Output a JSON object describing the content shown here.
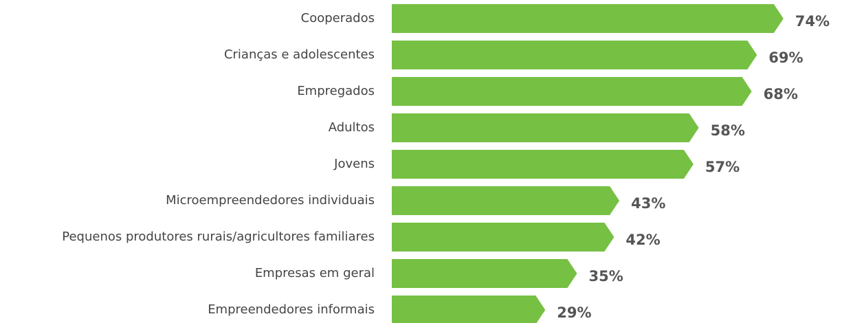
{
  "chart_data": {
    "type": "bar",
    "orientation": "horizontal",
    "color": "#76c043",
    "categories": [
      "Cooperados",
      "Crianças e adolescentes",
      "Empregados",
      "Adultos",
      "Jovens",
      "Microempreendedores individuais",
      "Pequenos produtores rurais/agricultores familiares",
      "Empresas em geral",
      "Empreendedores informais"
    ],
    "values": [
      74,
      69,
      68,
      58,
      57,
      43,
      42,
      35,
      29
    ],
    "value_labels": [
      "74%",
      "69%",
      "68%",
      "58%",
      "57%",
      "43%",
      "42%",
      "35%",
      "29%"
    ]
  }
}
